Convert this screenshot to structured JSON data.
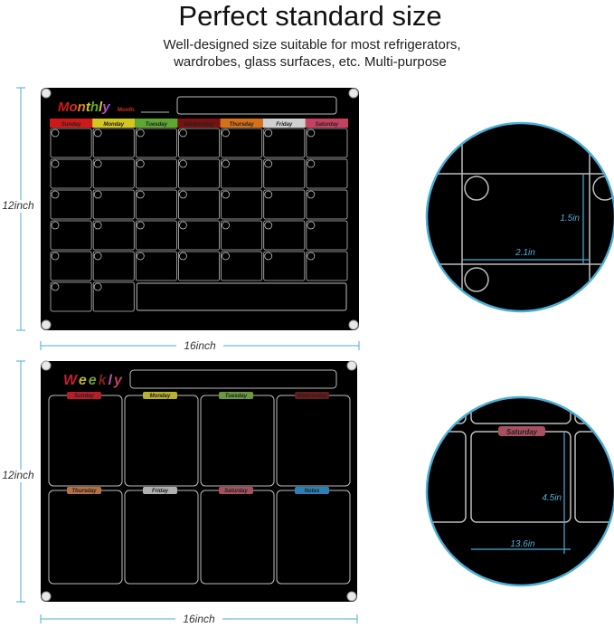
{
  "heading": "Perfect standard size",
  "subheading": [
    "Well-designed size suitable for most refrigerators,",
    "wardrobes, glass surfaces, etc. Multi-purpose"
  ],
  "accent_color": "#4aaed6",
  "monthly": {
    "title": "Monthly",
    "title_colors": [
      "#d01818",
      "#d03018",
      "#e08020",
      "#d4c620",
      "#5fa830",
      "#d6c020",
      "#b050c0"
    ],
    "month_label": "Month:",
    "height_label": "12inch",
    "width_label": "16inch",
    "days": [
      {
        "label": "Sunday",
        "color": "#d01818"
      },
      {
        "label": "Monday",
        "color": "#d4c620"
      },
      {
        "label": "Tuesday",
        "color": "#5fa830"
      },
      {
        "label": "Wednesday",
        "color": "#7a1010"
      },
      {
        "label": "Thursday",
        "color": "#d8701a"
      },
      {
        "label": "Friday",
        "color": "#d0d0d0"
      },
      {
        "label": "Saturday",
        "color": "#c84060"
      }
    ],
    "detail": {
      "width_label": "2.1in",
      "height_label": "1.5in"
    }
  },
  "weekly": {
    "title": "Weekly",
    "title_colors": [
      "#c02030",
      "#c0b040",
      "#70a040",
      "#7a2020",
      "#b050a0",
      "#c04060"
    ],
    "height_label": "12inch",
    "width_label": "16inch",
    "sections": [
      {
        "label": "Sunday",
        "color": "#b81c28"
      },
      {
        "label": "Monday",
        "color": "#b8b030"
      },
      {
        "label": "Tuesday",
        "color": "#6a9a40"
      },
      {
        "label": "Wednesday",
        "color": "#6a1c1c"
      },
      {
        "label": "Thursday",
        "color": "#b87040"
      },
      {
        "label": "Friday",
        "color": "#b0b0b0"
      },
      {
        "label": "Saturday",
        "color": "#a85060"
      },
      {
        "label": "Notes",
        "color": "#2a80b8"
      }
    ],
    "detail": {
      "label": "Saturday",
      "width_label": "13.6in",
      "height_label": "4.5in"
    }
  }
}
